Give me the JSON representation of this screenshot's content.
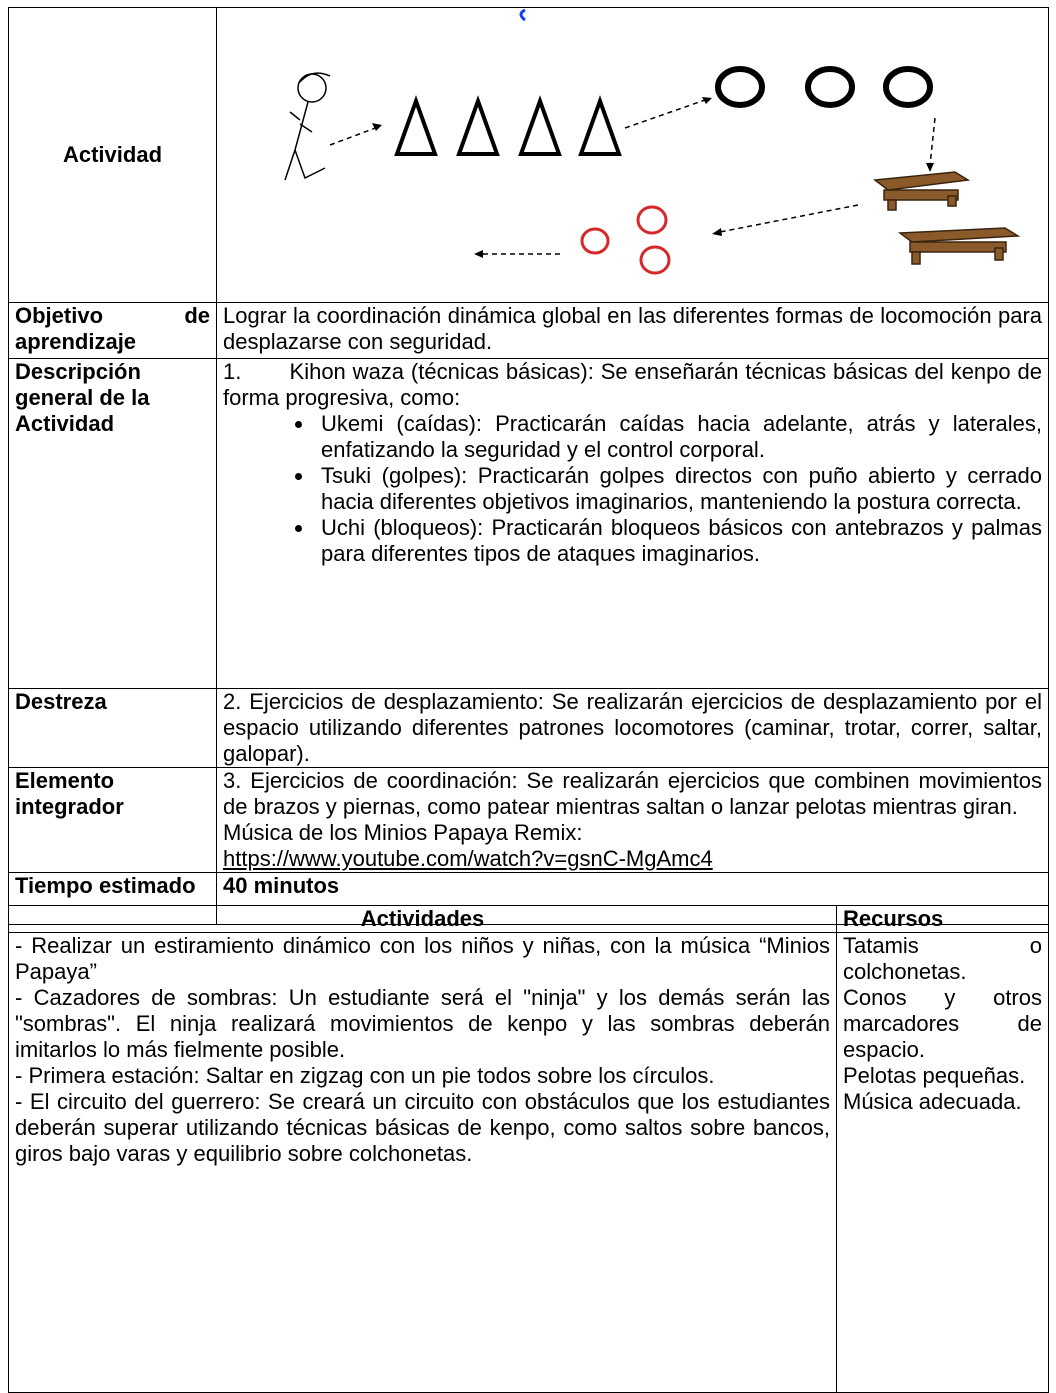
{
  "table": {
    "rows": [
      {
        "label": "Actividad"
      },
      {
        "label": "Objetivo de aprendizaje",
        "text": "Lograr la coordinación dinámica global en las diferentes formas de locomoción para desplazarse con seguridad."
      },
      {
        "label": "Descripción general de la Actividad",
        "text": "1.       Kihon waza (técnicas básicas): Se enseñarán técnicas básicas del kenpo de forma progresiva, como:",
        "bullets": [
          "Ukemi (caídas): Practicarán caídas hacia adelante, atrás y laterales, enfatizando la seguridad y el control corporal.",
          "Tsuki (golpes): Practicarán golpes directos con puño abierto y cerrado hacia diferentes objetivos imaginarios, manteniendo la postura correcta.",
          "Uchi (bloqueos): Practicarán bloqueos básicos con antebrazos y palmas para diferentes tipos de ataques imaginarios."
        ]
      },
      {
        "label": "Destreza",
        "text": "2. Ejercicios de desplazamiento: Se realizarán ejercicios de desplazamiento por el espacio utilizando diferentes patrones locomotores (caminar, trotar, correr, saltar, galopar)."
      },
      {
        "label": "Elemento integrador",
        "text": "3. Ejercicios de coordinación: Se realizarán ejercicios que combinen movimientos de brazos y piernas, como patear mientras saltan o lanzar pelotas mientras giran.",
        "music": "Música de los Minios Papaya Remix:",
        "link": "https://www.youtube.com/watch?v=gsnC-MgAmc4"
      },
      {
        "label": "Tiempo estimado",
        "text": "40 minutos"
      }
    ]
  },
  "activities_table": {
    "headers": [
      "Actividades",
      "Recursos"
    ],
    "activities": [
      "- Realizar un estiramiento dinámico con los niños y niñas, con la música “Minios Papaya”",
      "- Cazadores de sombras: Un estudiante será el \"ninja\" y los demás serán las \"sombras\". El ninja realizará movimientos de kenpo y las sombras deberán imitarlos lo más fielmente posible.",
      "- Primera estación: Saltar en zigzag con un pie todos sobre los círculos.",
      "- El circuito del guerrero: Se creará un circuito con obstáculos que los estudiantes deberán superar utilizando técnicas básicas de kenpo, como saltos sobre bancos, giros bajo varas y equilibrio sobre colchonetas."
    ],
    "resources": [
      "Tatamis o colchonetas.",
      "Conos y otros marcadores de espacio.",
      "Pelotas pequeñas.",
      "Música adecuada."
    ]
  }
}
